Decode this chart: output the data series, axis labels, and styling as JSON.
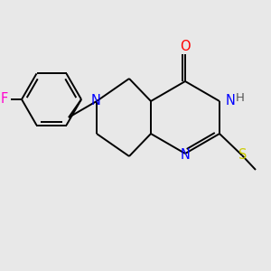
{
  "background_color": "#e8e8e8",
  "atom_colors": {
    "N": "#0000ff",
    "O": "#ff0000",
    "F": "#ff00cc",
    "S": "#cccc00",
    "C": "#000000",
    "H": "#555555"
  },
  "bond_color": "#000000",
  "lw": 1.4
}
